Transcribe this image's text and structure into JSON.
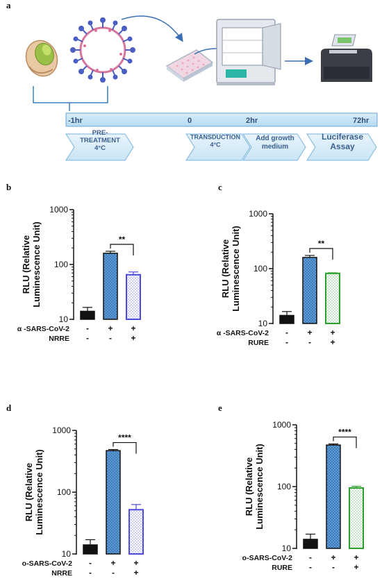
{
  "figure": {
    "panel_a": {
      "letter": "a",
      "timeline_ticks": [
        "-1hr",
        "0",
        "2hr",
        "72hr"
      ],
      "steps": [
        "PRE-\nTREATMENT\n4°C",
        "TRANSDUCTION\n4°C",
        "Add growth\nmedium",
        "Luciferase\nAssay"
      ],
      "icons": [
        "pistachio-icon",
        "virus-icon",
        "well-plate-icon",
        "incubator-icon",
        "plate-reader-icon"
      ]
    }
  },
  "chart_data": [
    {
      "panel": "b",
      "type": "bar",
      "ylabel": "RLU (Relative\nLuminescence Unit)",
      "yscale": "log",
      "ylim": [
        10,
        1000
      ],
      "yticks": [
        "10",
        "100",
        "1000"
      ],
      "row_labels": [
        "α -SARS-CoV-2",
        "NRRE"
      ],
      "signs": [
        [
          "-",
          "+",
          "+"
        ],
        [
          "-",
          "-",
          "+"
        ]
      ],
      "values": [
        14,
        160,
        65
      ],
      "errors": [
        2.5,
        14,
        8
      ],
      "bar_styles": [
        "solid-black",
        "dots-blue",
        "dots-outline-blue"
      ],
      "colors": [
        "#111111",
        "#5b9bd5",
        "#4a4adf"
      ],
      "significance": "**"
    },
    {
      "panel": "c",
      "type": "bar",
      "ylabel": "RLU (Relative\nLuminescence Unit)",
      "yscale": "log",
      "ylim": [
        10,
        1000
      ],
      "yticks": [
        "10",
        "100",
        "1000"
      ],
      "row_labels": [
        "α -SARS-CoV-2",
        "RURE"
      ],
      "signs": [
        [
          "-",
          "+",
          "+"
        ],
        [
          "-",
          "-",
          "+"
        ]
      ],
      "values": [
        14,
        160,
        82
      ],
      "errors": [
        2.5,
        14,
        2
      ],
      "bar_styles": [
        "solid-black",
        "dots-blue",
        "dots-outline-green"
      ],
      "colors": [
        "#111111",
        "#5b9bd5",
        "#2ca02c"
      ],
      "significance": "**"
    },
    {
      "panel": "d",
      "type": "bar",
      "ylabel": "RLU (Relative\nLuminescence Unit)",
      "yscale": "log",
      "ylim": [
        10,
        1000
      ],
      "yticks": [
        "10",
        "100",
        "1000"
      ],
      "row_labels": [
        "o-SARS-CoV-2",
        "NRRE"
      ],
      "signs": [
        [
          "-",
          "+",
          "+"
        ],
        [
          "-",
          "-",
          "+"
        ]
      ],
      "values": [
        14,
        470,
        52
      ],
      "errors": [
        3,
        20,
        11
      ],
      "bar_styles": [
        "solid-black",
        "dots-blue",
        "dots-outline-blue"
      ],
      "colors": [
        "#111111",
        "#5b9bd5",
        "#4a4adf"
      ],
      "significance": "****"
    },
    {
      "panel": "e",
      "type": "bar",
      "ylabel": "RLU (Relative\nLuminescence Unit)",
      "yscale": "log",
      "ylim": [
        10,
        1000
      ],
      "yticks": [
        "10",
        "100",
        "1000"
      ],
      "row_labels": [
        "o-SARS-CoV-2",
        "RURE"
      ],
      "signs": [
        [
          "-",
          "+",
          "+"
        ],
        [
          "-",
          "-",
          "+"
        ]
      ],
      "values": [
        14,
        470,
        95
      ],
      "errors": [
        3,
        20,
        6
      ],
      "bar_styles": [
        "solid-black",
        "dots-blue",
        "dots-outline-green"
      ],
      "colors": [
        "#111111",
        "#5b9bd5",
        "#2ca02c"
      ],
      "significance": "****"
    }
  ]
}
